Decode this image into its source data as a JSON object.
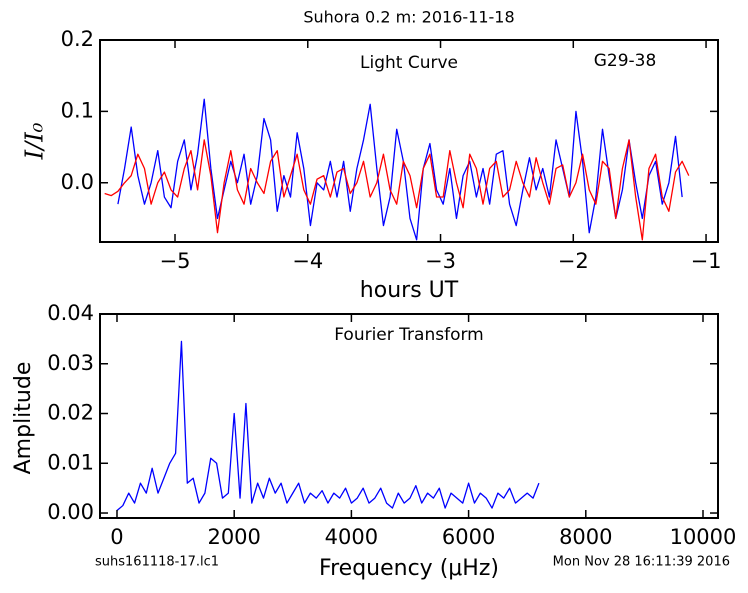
{
  "chart_data": [
    {
      "type": "line",
      "title": "Suhora 0.2 m:  2016-11-18",
      "annotations": [
        "Light Curve",
        "G29-38"
      ],
      "x_label": "hours UT",
      "y_label": "I/I₀",
      "xlim": [
        -5.565,
        -0.91
      ],
      "ylim": [
        -0.083,
        0.2
      ],
      "xticks": [
        {
          "value": -5,
          "label": "−5"
        },
        {
          "value": -4,
          "label": "−4"
        },
        {
          "value": -3,
          "label": "−3"
        },
        {
          "value": -2,
          "label": "−2"
        },
        {
          "value": -1,
          "label": "−1"
        }
      ],
      "yticks": [
        {
          "value": 0,
          "label": "0.0"
        },
        0.1,
        0.2
      ],
      "series": [
        {
          "color": "#0000ff",
          "x": [
            -5.43,
            -5.38,
            -5.33,
            -5.28,
            -5.23,
            -5.18,
            -5.13,
            -5.08,
            -5.03,
            -4.98,
            -4.93,
            -4.88,
            -4.83,
            -4.78,
            -4.73,
            -4.68,
            -4.63,
            -4.58,
            -4.53,
            -4.48,
            -4.43,
            -4.38,
            -4.33,
            -4.28,
            -4.23,
            -4.18,
            -4.13,
            -4.08,
            -4.03,
            -3.98,
            -3.93,
            -3.88,
            -3.83,
            -3.78,
            -3.73,
            -3.68,
            -3.63,
            -3.58,
            -3.53,
            -3.48,
            -3.43,
            -3.38,
            -3.33,
            -3.28,
            -3.23,
            -3.18,
            -3.13,
            -3.08,
            -3.03,
            -2.98,
            -2.93,
            -2.88,
            -2.83,
            -2.78,
            -2.73,
            -2.68,
            -2.63,
            -2.58,
            -2.53,
            -2.48,
            -2.43,
            -2.38,
            -2.33,
            -2.28,
            -2.23,
            -2.18,
            -2.13,
            -2.08,
            -2.03,
            -1.98,
            -1.93,
            -1.88,
            -1.83,
            -1.78,
            -1.73,
            -1.68,
            -1.63,
            -1.58,
            -1.53,
            -1.48,
            -1.43,
            -1.38,
            -1.33,
            -1.28,
            -1.23,
            -1.18
          ],
          "values": [
            -0.03,
            0.02,
            0.078,
            0.01,
            -0.03,
            0.0,
            0.045,
            -0.02,
            -0.035,
            0.03,
            0.06,
            -0.01,
            0.04,
            0.117,
            0.02,
            -0.05,
            -0.01,
            0.03,
            0.0,
            0.04,
            -0.03,
            0.01,
            0.09,
            0.06,
            -0.04,
            0.01,
            -0.02,
            0.07,
            0.02,
            -0.06,
            0.0,
            -0.01,
            0.03,
            -0.02,
            0.03,
            -0.04,
            0.02,
            0.06,
            0.11,
            0.02,
            -0.06,
            -0.02,
            0.075,
            0.03,
            -0.05,
            -0.08,
            0.02,
            0.055,
            -0.01,
            -0.03,
            0.02,
            -0.05,
            0.01,
            0.03,
            -0.02,
            0.02,
            -0.03,
            0.04,
            0.045,
            -0.03,
            -0.06,
            -0.01,
            0.035,
            -0.01,
            0.02,
            -0.02,
            0.06,
            0.02,
            -0.02,
            0.1,
            0.03,
            -0.07,
            -0.02,
            0.075,
            0.01,
            -0.05,
            -0.01,
            0.06,
            0.0,
            -0.05,
            0.01,
            0.03,
            -0.03,
            0.0,
            0.065,
            -0.02
          ]
        },
        {
          "color": "#ff0000",
          "x": [
            -5.53,
            -5.48,
            -5.43,
            -5.38,
            -5.33,
            -5.28,
            -5.23,
            -5.18,
            -5.13,
            -5.08,
            -5.03,
            -4.98,
            -4.93,
            -4.88,
            -4.83,
            -4.78,
            -4.73,
            -4.68,
            -4.63,
            -4.58,
            -4.53,
            -4.48,
            -4.43,
            -4.38,
            -4.33,
            -4.28,
            -4.23,
            -4.18,
            -4.13,
            -4.08,
            -4.03,
            -3.98,
            -3.93,
            -3.88,
            -3.83,
            -3.78,
            -3.73,
            -3.68,
            -3.63,
            -3.58,
            -3.53,
            -3.48,
            -3.43,
            -3.38,
            -3.33,
            -3.28,
            -3.23,
            -3.18,
            -3.13,
            -3.08,
            -3.03,
            -2.98,
            -2.93,
            -2.88,
            -2.83,
            -2.78,
            -2.73,
            -2.68,
            -2.63,
            -2.58,
            -2.53,
            -2.48,
            -2.43,
            -2.38,
            -2.33,
            -2.28,
            -2.23,
            -2.18,
            -2.13,
            -2.08,
            -2.03,
            -1.98,
            -1.93,
            -1.88,
            -1.83,
            -1.78,
            -1.73,
            -1.68,
            -1.63,
            -1.58,
            -1.53,
            -1.48,
            -1.43,
            -1.38,
            -1.33,
            -1.28,
            -1.23,
            -1.18,
            -1.13
          ],
          "values": [
            -0.015,
            -0.018,
            -0.012,
            0.0,
            0.01,
            0.04,
            0.02,
            -0.03,
            0.0,
            0.015,
            -0.01,
            -0.02,
            0.02,
            0.045,
            -0.01,
            0.06,
            0.01,
            -0.07,
            0.0,
            0.045,
            -0.01,
            -0.03,
            0.02,
            0.0,
            -0.015,
            0.03,
            0.045,
            -0.02,
            0.01,
            0.04,
            -0.01,
            -0.03,
            0.005,
            0.01,
            -0.02,
            0.015,
            0.02,
            -0.015,
            0.0,
            0.03,
            -0.02,
            0.0,
            0.04,
            -0.01,
            -0.03,
            0.03,
            0.01,
            -0.035,
            0.02,
            0.04,
            -0.02,
            -0.02,
            0.045,
            0.0,
            -0.035,
            0.04,
            0.02,
            -0.03,
            0.02,
            0.03,
            -0.02,
            -0.01,
            0.03,
            0.0,
            -0.02,
            0.035,
            0.0,
            -0.03,
            0.02,
            0.025,
            -0.02,
            0.0,
            0.04,
            -0.01,
            -0.03,
            0.03,
            0.02,
            -0.05,
            0.02,
            0.06,
            -0.02,
            -0.08,
            0.02,
            0.04,
            -0.02,
            -0.04,
            0.015,
            0.03,
            0.01
          ]
        }
      ]
    },
    {
      "type": "line",
      "annotations": [
        "Fourier Transform"
      ],
      "x_label": "Frequency (μHz)",
      "y_label": "Amplitude",
      "xlim": [
        -290,
        10256
      ],
      "ylim": [
        -0.001,
        0.04
      ],
      "xticks": [
        0,
        2000,
        4000,
        6000,
        8000,
        10000
      ],
      "yticks": [
        {
          "value": 0,
          "label": "0.00"
        },
        0.01,
        0.02,
        0.03,
        0.04
      ],
      "series": [
        {
          "color": "#0000ff",
          "x": [
            0,
            100,
            200,
            300,
            400,
            500,
            600,
            700,
            800,
            900,
            1000,
            1100,
            1200,
            1300,
            1400,
            1500,
            1600,
            1700,
            1800,
            1900,
            2000,
            2100,
            2200,
            2300,
            2400,
            2500,
            2600,
            2700,
            2800,
            2900,
            3000,
            3100,
            3200,
            3300,
            3400,
            3500,
            3600,
            3700,
            3800,
            3900,
            4000,
            4100,
            4200,
            4300,
            4400,
            4500,
            4600,
            4700,
            4800,
            4900,
            5000,
            5100,
            5200,
            5300,
            5400,
            5500,
            5600,
            5700,
            5800,
            5900,
            6000,
            6100,
            6200,
            6300,
            6400,
            6500,
            6600,
            6700,
            6800,
            6900,
            7000,
            7100,
            7200
          ],
          "values": [
            0.0005,
            0.0015,
            0.004,
            0.002,
            0.006,
            0.004,
            0.009,
            0.004,
            0.007,
            0.01,
            0.012,
            0.0345,
            0.006,
            0.007,
            0.002,
            0.004,
            0.011,
            0.01,
            0.003,
            0.004,
            0.02,
            0.003,
            0.022,
            0.002,
            0.006,
            0.003,
            0.007,
            0.004,
            0.006,
            0.002,
            0.004,
            0.006,
            0.002,
            0.004,
            0.003,
            0.0045,
            0.002,
            0.004,
            0.003,
            0.005,
            0.002,
            0.003,
            0.005,
            0.002,
            0.003,
            0.005,
            0.002,
            0.001,
            0.004,
            0.002,
            0.003,
            0.0055,
            0.002,
            0.004,
            0.003,
            0.005,
            0.001,
            0.004,
            0.003,
            0.002,
            0.006,
            0.002,
            0.004,
            0.003,
            0.001,
            0.004,
            0.003,
            0.005,
            0.002,
            0.003,
            0.004,
            0.003,
            0.006
          ]
        }
      ]
    }
  ],
  "footer": {
    "left": "suhs161118-17.lc1",
    "right": "Mon Nov 28 16:11:39 2016"
  }
}
